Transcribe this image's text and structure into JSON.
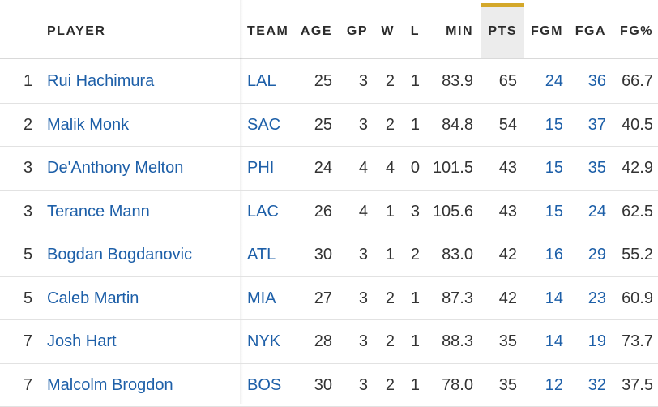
{
  "columns": {
    "player": "PLAYER",
    "team": "TEAM",
    "age": "AGE",
    "gp": "GP",
    "w": "W",
    "l": "L",
    "min": "MIN",
    "pts": "PTS",
    "fgm": "FGM",
    "fga": "FGA",
    "fgpct": "FG%"
  },
  "sorted_column": "PTS",
  "colors": {
    "link": "#1d5fa8",
    "sort_accent": "#d4a82a",
    "sort_bg": "#ececec"
  },
  "rows": [
    {
      "rank": "1",
      "player": "Rui Hachimura",
      "team": "LAL",
      "age": "25",
      "gp": "3",
      "w": "2",
      "l": "1",
      "min": "83.9",
      "pts": "65",
      "fgm": "24",
      "fga": "36",
      "fgpct": "66.7"
    },
    {
      "rank": "2",
      "player": "Malik Monk",
      "team": "SAC",
      "age": "25",
      "gp": "3",
      "w": "2",
      "l": "1",
      "min": "84.8",
      "pts": "54",
      "fgm": "15",
      "fga": "37",
      "fgpct": "40.5"
    },
    {
      "rank": "3",
      "player": "De'Anthony Melton",
      "team": "PHI",
      "age": "24",
      "gp": "4",
      "w": "4",
      "l": "0",
      "min": "101.5",
      "pts": "43",
      "fgm": "15",
      "fga": "35",
      "fgpct": "42.9"
    },
    {
      "rank": "3",
      "player": "Terance Mann",
      "team": "LAC",
      "age": "26",
      "gp": "4",
      "w": "1",
      "l": "3",
      "min": "105.6",
      "pts": "43",
      "fgm": "15",
      "fga": "24",
      "fgpct": "62.5"
    },
    {
      "rank": "5",
      "player": "Bogdan Bogdanovic",
      "team": "ATL",
      "age": "30",
      "gp": "3",
      "w": "1",
      "l": "2",
      "min": "83.0",
      "pts": "42",
      "fgm": "16",
      "fga": "29",
      "fgpct": "55.2"
    },
    {
      "rank": "5",
      "player": "Caleb Martin",
      "team": "MIA",
      "age": "27",
      "gp": "3",
      "w": "2",
      "l": "1",
      "min": "87.3",
      "pts": "42",
      "fgm": "14",
      "fga": "23",
      "fgpct": "60.9"
    },
    {
      "rank": "7",
      "player": "Josh Hart",
      "team": "NYK",
      "age": "28",
      "gp": "3",
      "w": "2",
      "l": "1",
      "min": "88.3",
      "pts": "35",
      "fgm": "14",
      "fga": "19",
      "fgpct": "73.7"
    },
    {
      "rank": "7",
      "player": "Malcolm Brogdon",
      "team": "BOS",
      "age": "30",
      "gp": "3",
      "w": "2",
      "l": "1",
      "min": "78.0",
      "pts": "35",
      "fgm": "12",
      "fga": "32",
      "fgpct": "37.5"
    }
  ]
}
